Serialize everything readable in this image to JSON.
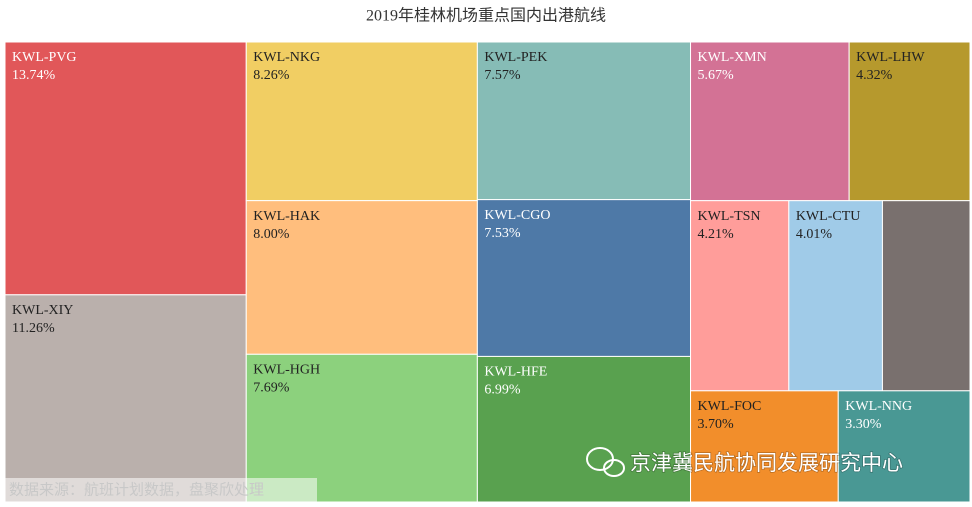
{
  "chart_data": {
    "type": "treemap",
    "title": "2019年桂林机场重点国内出港航线",
    "categories": [
      "KWL-PVG",
      "KWL-XIY",
      "KWL-NKG",
      "KWL-HAK",
      "KWL-HGH",
      "KWL-PEK",
      "KWL-CGO",
      "KWL-HFE",
      "KWL-XMN",
      "KWL-LHW",
      "KWL-TSN",
      "KWL-CTU",
      null,
      "KWL-FOC",
      "KWL-NNG"
    ],
    "values": [
      13.74,
      11.26,
      8.26,
      8.0,
      7.69,
      7.57,
      7.53,
      6.99,
      5.67,
      4.32,
      4.21,
      4.01,
      3.75,
      3.7,
      3.3
    ],
    "value_labels": [
      "13.74%",
      "11.26%",
      "8.26%",
      "8.00%",
      "7.69%",
      "7.57%",
      "7.53%",
      "6.99%",
      "5.67%",
      "4.32%",
      "4.21%",
      "4.01%",
      null,
      "3.70%",
      "3.30%"
    ],
    "colors": [
      "#e15759",
      "#bab0ac",
      "#f1ce63",
      "#ffbe7d",
      "#8cd17d",
      "#86bcb6",
      "#4e79a7",
      "#59a14f",
      "#d37295",
      "#b6992d",
      "#ff9d9a",
      "#a0cbe8",
      "#79706e",
      "#f28e2b",
      "#499894"
    ],
    "source": "数据来源：航班计划数据，盘聚欣处理",
    "watermark": "京津冀民航协同发展研究中心"
  }
}
